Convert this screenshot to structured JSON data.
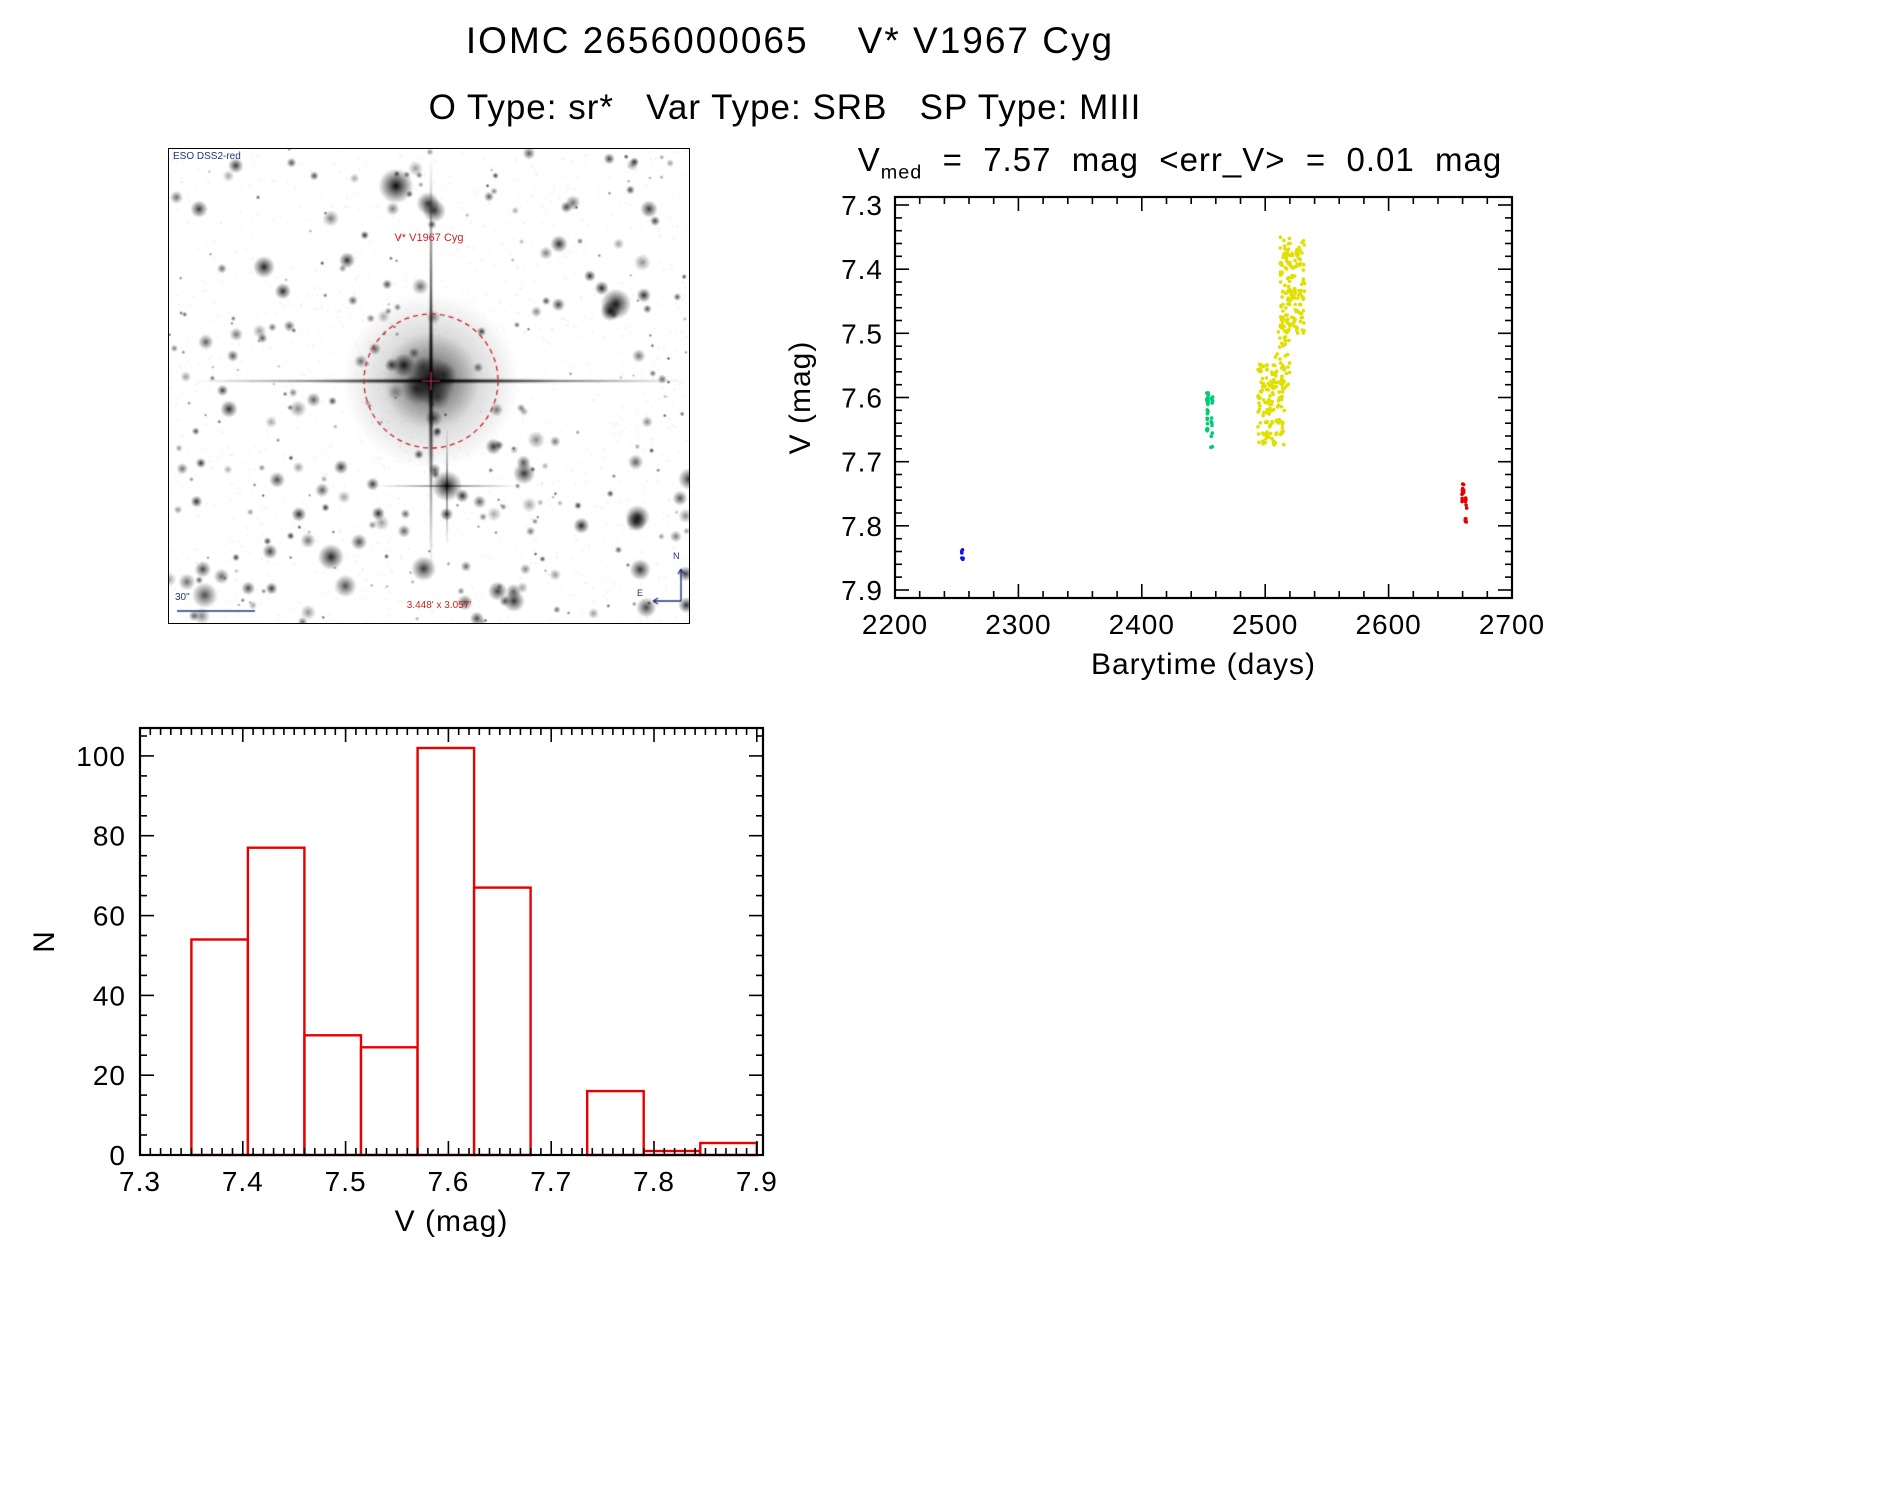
{
  "header": {
    "title": "IOMC 2656000065    V* V1967 Cyg",
    "subtitle": "O Type: sr*   Var Type: SRB   SP Type: MIII"
  },
  "starfield": {
    "survey_label": "ESO DSS2-red",
    "target_label": "V* V1967 Cyg",
    "scalebar_label": "30\"",
    "fov_label": "3.448' x 3.057'",
    "compass_north": "N",
    "compass_east": "E",
    "marker_circle_color": "#cc2222"
  },
  "lightcurve_title": {
    "prefix": "V",
    "subscript": "med",
    "rest": "  =  7.57  mag  <err_V>  =  0.01  mag"
  },
  "chart_data": [
    {
      "id": "lightcurve",
      "type": "scatter",
      "title": "V_med = 7.57 mag <err_V> = 0.01 mag",
      "xlabel": "Barytime (days)",
      "ylabel": "V (mag)",
      "xlim": [
        2200,
        2700
      ],
      "ylim": [
        7.9,
        7.3
      ],
      "y_axis_inverted": true,
      "xticks": [
        2200,
        2300,
        2400,
        2500,
        2600,
        2700
      ],
      "yticks": [
        7.3,
        7.4,
        7.5,
        7.6,
        7.7,
        7.8,
        7.9
      ],
      "x_minor_step": 20,
      "y_minor_step": 0.02,
      "series": [
        {
          "name": "epoch-1-blue",
          "color": "#1414e6",
          "clusters": [
            {
              "n": 7,
              "x": [
                2254,
                2255.5
              ],
              "y": [
                7.836,
                7.853
              ]
            }
          ]
        },
        {
          "name": "epoch-2-green",
          "color": "#00cc77",
          "clusters": [
            {
              "n": 26,
              "x": [
                2452.5,
                2454
              ],
              "y": [
                7.592,
                7.652
              ]
            },
            {
              "n": 14,
              "x": [
                2456,
                2457.5
              ],
              "y": [
                7.598,
                7.678
              ]
            }
          ]
        },
        {
          "name": "epoch-3-yellow",
          "color": "#e0e000",
          "clusters": [
            {
              "n": 150,
              "x": [
                2494,
                2516
              ],
              "y": [
                7.548,
                7.675
              ]
            },
            {
              "n": 155,
              "x": [
                2512,
                2532
              ],
              "y": [
                7.35,
                7.5
              ]
            },
            {
              "n": 45,
              "x": [
                2508,
                2520
              ],
              "y": [
                7.47,
                7.585
              ]
            }
          ]
        },
        {
          "name": "epoch-4-red",
          "color": "#e60000",
          "clusters": [
            {
              "n": 14,
              "x": [
                2659.5,
                2661
              ],
              "y": [
                7.733,
                7.764
              ]
            },
            {
              "n": 12,
              "x": [
                2662,
                2663.5
              ],
              "y": [
                7.756,
                7.796
              ]
            }
          ]
        }
      ]
    },
    {
      "id": "histogram",
      "type": "histogram",
      "xlabel": "V (mag)",
      "ylabel": "N",
      "bar_color": "#e60000",
      "xlim": [
        7.3,
        7.906
      ],
      "ylim": [
        0,
        107
      ],
      "xticks": [
        7.3,
        7.4,
        7.5,
        7.6,
        7.7,
        7.8,
        7.9
      ],
      "yticks": [
        0,
        20,
        40,
        60,
        80,
        100
      ],
      "x_minor_step": 0.01,
      "y_minor_step": 5,
      "bin_start": 7.35,
      "bin_width": 0.055,
      "counts": [
        54,
        77,
        30,
        27,
        102,
        67,
        0,
        16,
        1,
        3
      ]
    }
  ]
}
